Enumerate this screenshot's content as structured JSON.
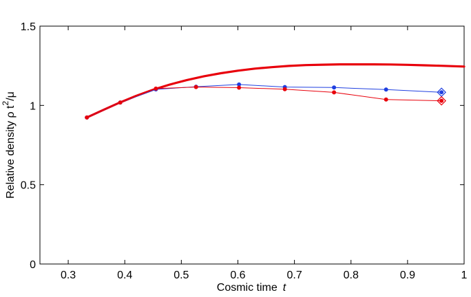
{
  "chart_data": {
    "type": "line",
    "title": "",
    "xlabel": "Cosmic time",
    "xlabel_var": "t",
    "ylabel": "Relative density ρ t",
    "ylabel_sup": "2",
    "ylabel_tail": "/μ",
    "xlim": [
      0.25,
      1.0
    ],
    "ylim": [
      0,
      1.5
    ],
    "xticks": [
      0.3,
      0.4,
      0.5,
      0.6,
      0.7,
      0.8,
      0.9,
      1
    ],
    "xtick_labels": [
      "0.3",
      "0.4",
      "0.5",
      "0.6",
      "0.7",
      "0.8",
      "0.9",
      "1"
    ],
    "yticks": [
      0,
      0.5,
      1,
      1.5
    ],
    "ytick_labels": [
      "0",
      "0.5",
      "1",
      "1.5"
    ],
    "grid": false,
    "legend": "none",
    "series": [
      {
        "style": "thick-line",
        "color": "#e8000b",
        "x": [
          0.333,
          0.36,
          0.39,
          0.42,
          0.45,
          0.48,
          0.51,
          0.54,
          0.57,
          0.6,
          0.63,
          0.66,
          0.69,
          0.72,
          0.75,
          0.78,
          0.81,
          0.84,
          0.87,
          0.9,
          0.93,
          0.96,
          1.0
        ],
        "y": [
          0.924,
          0.968,
          1.016,
          1.06,
          1.099,
          1.132,
          1.16,
          1.184,
          1.203,
          1.219,
          1.232,
          1.241,
          1.249,
          1.254,
          1.257,
          1.259,
          1.259,
          1.259,
          1.258,
          1.256,
          1.253,
          1.25,
          1.245
        ]
      },
      {
        "style": "line-markers",
        "color": "#1f3fe0",
        "x": [
          0.333,
          0.392,
          0.455,
          0.526,
          0.602,
          0.683,
          0.77,
          0.862,
          0.96
        ],
        "y": [
          0.924,
          1.018,
          1.101,
          1.118,
          1.132,
          1.116,
          1.113,
          1.1,
          1.083
        ],
        "end_marker": "diamond"
      },
      {
        "style": "line-markers",
        "color": "#e8000b",
        "x": [
          0.333,
          0.392,
          0.455,
          0.526,
          0.602,
          0.683,
          0.77,
          0.862,
          0.96
        ],
        "y": [
          0.924,
          1.018,
          1.106,
          1.116,
          1.112,
          1.102,
          1.082,
          1.037,
          1.029
        ],
        "end_marker": "diamond"
      }
    ]
  }
}
